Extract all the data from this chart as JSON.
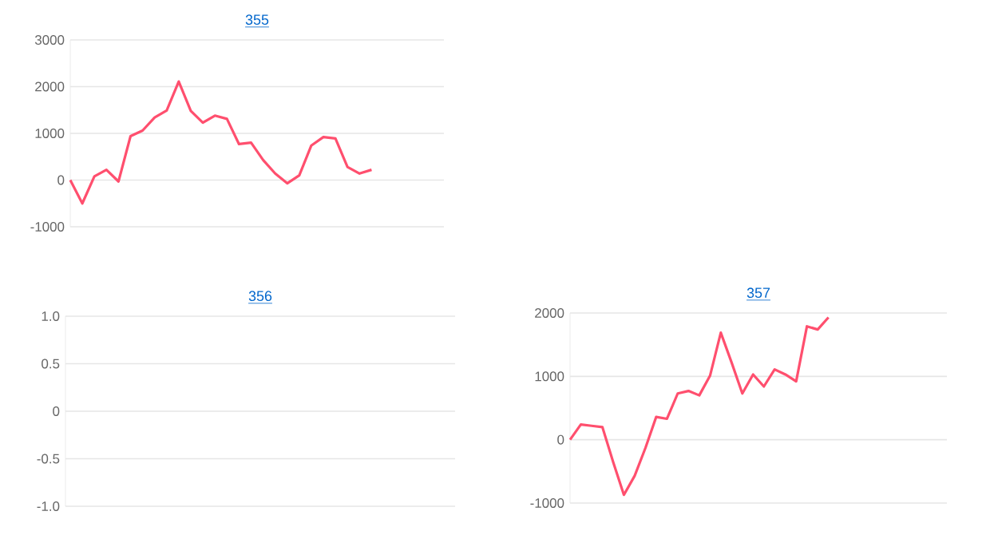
{
  "chart_data": [
    {
      "type": "line",
      "title": "355",
      "categories": [
        null,
        null,
        null,
        null,
        null,
        null,
        null,
        null,
        null,
        null,
        null,
        null,
        null,
        null,
        null,
        null,
        null,
        null,
        null,
        null,
        null,
        null,
        null,
        null,
        null,
        null,
        null,
        null,
        null,
        null,
        null,
        null
      ],
      "series": [
        {
          "color": "#ff4f6e",
          "values": [
            0,
            -500,
            80,
            220,
            -30,
            940,
            1060,
            1340,
            1490,
            2110,
            1480,
            1230,
            1380,
            1310,
            770,
            800,
            430,
            140,
            -70,
            100,
            740,
            920,
            890,
            280,
            140,
            220,
            null,
            null,
            null,
            null,
            null,
            null
          ]
        }
      ],
      "ylim": [
        -1000,
        3000
      ],
      "yticks": [
        -1000,
        0,
        1000,
        2000,
        3000
      ],
      "grid": "y",
      "marker": "none",
      "tick_labels": "y"
    },
    {
      "type": "line",
      "title": "356",
      "categories": [
        null,
        null,
        null,
        null,
        null,
        null,
        null,
        null,
        null,
        null,
        null,
        null,
        null,
        null,
        null,
        null,
        null,
        null,
        null,
        null,
        null,
        null,
        null,
        null,
        null,
        null,
        null,
        null,
        null,
        null,
        null,
        null
      ],
      "series": [
        {
          "values": [
            null,
            null,
            null,
            null,
            null,
            null,
            null,
            null,
            null,
            null,
            null,
            null,
            null,
            null,
            null,
            null,
            null,
            null,
            null,
            null,
            null,
            null,
            null,
            null,
            null,
            null,
            null,
            null,
            null,
            null,
            null,
            null
          ]
        }
      ],
      "ylim": [
        -1,
        1
      ],
      "yticks": [
        {
          "value": -1,
          "label": "-1.0"
        },
        -0.5,
        0,
        0.5,
        {
          "value": 1,
          "label": "1.0"
        }
      ],
      "grid": "y",
      "marker": "none",
      "tick_labels": "y"
    },
    {
      "type": "line",
      "title": "357",
      "categories": [
        null,
        null,
        null,
        null,
        null,
        null,
        null,
        null,
        null,
        null,
        null,
        null,
        null,
        null,
        null,
        null,
        null,
        null,
        null,
        null,
        null,
        null,
        null,
        null,
        null,
        null,
        null,
        null,
        null,
        null,
        null,
        null,
        null,
        null,
        null,
        null
      ],
      "series": [
        {
          "color": "#ff4f6e",
          "values": [
            0,
            240,
            220,
            200,
            -350,
            -870,
            -570,
            -130,
            360,
            330,
            730,
            770,
            700,
            1010,
            1690,
            1220,
            730,
            1030,
            840,
            1110,
            1030,
            920,
            1790,
            1740,
            1930,
            null,
            null,
            null,
            null,
            null,
            null,
            null,
            null,
            null,
            null,
            null
          ]
        }
      ],
      "ylim": [
        -1000,
        2000
      ],
      "yticks": [
        -1000,
        0,
        1000,
        2000
      ],
      "grid": "y",
      "marker": "none",
      "tick_labels": "y"
    }
  ]
}
